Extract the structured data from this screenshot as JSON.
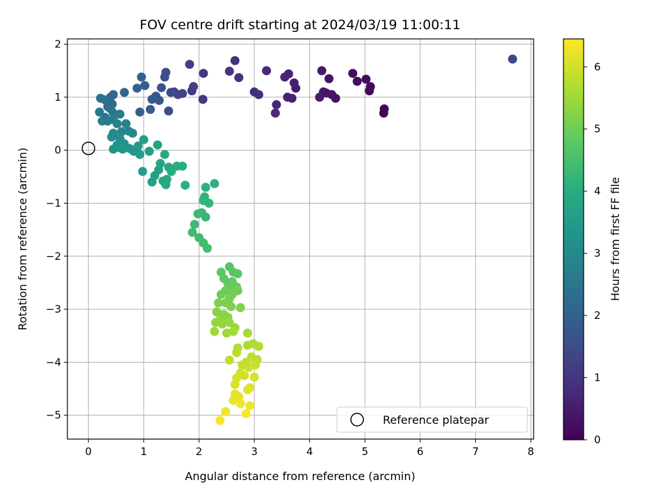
{
  "chart_data": {
    "type": "scatter",
    "title": "FOV centre drift starting at 2024/03/19 11:00:11",
    "xlabel": "Angular distance from reference (arcmin)",
    "ylabel": "Rotation from reference (arcmin)",
    "xlim": [
      -0.38,
      8.05
    ],
    "ylim": [
      -5.45,
      2.1
    ],
    "xticks": [
      0,
      1,
      2,
      3,
      4,
      5,
      6,
      7,
      8
    ],
    "yticks": [
      2,
      1,
      0,
      -1,
      -2,
      -3,
      -4,
      -5
    ],
    "grid": true,
    "colormap": "viridis",
    "colorbar": {
      "label": "Hours from first FF file",
      "range": [
        0,
        6.45
      ],
      "ticks": [
        0,
        1,
        2,
        3,
        4,
        5,
        6
      ]
    },
    "legend": {
      "placement": "lower-right",
      "entries": [
        {
          "label": "Reference platepar",
          "marker": "open-circle"
        }
      ],
      "reference_point": [
        0,
        0
      ]
    },
    "points": [
      [
        7.67,
        1.72,
        1.4
      ],
      [
        5.35,
        0.78,
        0.05
      ],
      [
        5.34,
        0.7,
        0.07
      ],
      [
        5.1,
        1.2,
        0.12
      ],
      [
        5.08,
        1.12,
        0.15
      ],
      [
        5.02,
        1.34,
        0.18
      ],
      [
        4.86,
        1.3,
        0.22
      ],
      [
        4.78,
        1.45,
        0.25
      ],
      [
        4.47,
        0.98,
        0.3
      ],
      [
        4.4,
        1.05,
        0.33
      ],
      [
        4.35,
        1.35,
        0.36
      ],
      [
        4.3,
        1.08,
        0.38
      ],
      [
        4.25,
        1.1,
        0.41
      ],
      [
        4.22,
        1.5,
        0.44
      ],
      [
        4.18,
        1.0,
        0.47
      ],
      [
        3.75,
        1.17,
        0.52
      ],
      [
        3.72,
        1.27,
        0.55
      ],
      [
        3.68,
        0.98,
        0.58
      ],
      [
        3.62,
        1.44,
        0.61
      ],
      [
        3.6,
        1.0,
        0.64
      ],
      [
        3.55,
        1.38,
        0.67
      ],
      [
        3.4,
        0.86,
        0.7
      ],
      [
        3.38,
        0.7,
        0.73
      ],
      [
        3.22,
        1.5,
        0.77
      ],
      [
        3.08,
        1.05,
        0.8
      ],
      [
        3.0,
        1.1,
        0.83
      ],
      [
        2.72,
        1.37,
        0.87
      ],
      [
        2.65,
        1.69,
        0.91
      ],
      [
        2.55,
        1.49,
        0.95
      ],
      [
        2.08,
        1.45,
        1.05
      ],
      [
        2.07,
        0.96,
        1.1
      ],
      [
        1.9,
        1.2,
        1.15
      ],
      [
        1.87,
        1.12,
        1.2
      ],
      [
        1.83,
        1.62,
        1.25
      ],
      [
        1.7,
        1.07,
        1.3
      ],
      [
        1.62,
        1.05,
        1.35
      ],
      [
        1.55,
        1.1,
        1.4
      ],
      [
        1.49,
        1.09,
        1.45
      ],
      [
        1.45,
        0.74,
        1.5
      ],
      [
        1.4,
        1.47,
        1.55
      ],
      [
        1.38,
        1.38,
        1.6
      ],
      [
        1.32,
        1.18,
        1.65
      ],
      [
        1.28,
        0.94,
        1.7
      ],
      [
        1.22,
        1.02,
        1.75
      ],
      [
        1.15,
        0.96,
        1.8
      ],
      [
        1.12,
        0.77,
        1.85
      ],
      [
        1.02,
        1.22,
        1.9
      ],
      [
        0.96,
        1.38,
        1.95
      ],
      [
        0.93,
        0.72,
        2.0
      ],
      [
        0.88,
        1.17,
        2.05
      ],
      [
        0.65,
        1.09,
        2.1
      ],
      [
        0.45,
        1.05,
        2.15
      ],
      [
        0.4,
        1.0,
        2.2
      ],
      [
        0.43,
        0.87,
        2.25
      ],
      [
        0.35,
        0.82,
        2.3
      ],
      [
        0.3,
        0.95,
        2.35
      ],
      [
        0.22,
        0.98,
        2.4
      ],
      [
        0.4,
        0.78,
        2.45
      ],
      [
        0.45,
        0.7,
        2.5
      ],
      [
        0.3,
        0.62,
        2.55
      ],
      [
        0.25,
        0.55,
        2.6
      ],
      [
        0.2,
        0.72,
        2.62
      ],
      [
        0.35,
        0.55,
        2.65
      ],
      [
        0.45,
        0.58,
        2.7
      ],
      [
        0.57,
        0.68,
        2.75
      ],
      [
        0.52,
        0.5,
        2.8
      ],
      [
        0.68,
        0.5,
        2.85
      ],
      [
        0.6,
        0.35,
        2.9
      ],
      [
        0.73,
        0.36,
        2.95
      ],
      [
        0.8,
        0.32,
        3.0
      ],
      [
        0.45,
        0.32,
        3.05
      ],
      [
        0.42,
        0.25,
        3.1
      ],
      [
        0.57,
        0.22,
        3.15
      ],
      [
        0.6,
        0.15,
        3.2
      ],
      [
        0.52,
        0.1,
        3.25
      ],
      [
        0.65,
        0.12,
        3.28
      ],
      [
        0.55,
        0.05,
        3.3
      ],
      [
        0.45,
        0.02,
        3.33
      ],
      [
        0.62,
        0.02,
        3.36
      ],
      [
        0.75,
        0.03,
        3.4
      ],
      [
        0.82,
        -0.02,
        3.43
      ],
      [
        0.9,
        0.08,
        3.46
      ],
      [
        0.93,
        -0.08,
        3.5
      ],
      [
        1.0,
        0.2,
        3.53
      ],
      [
        1.1,
        -0.02,
        3.56
      ],
      [
        0.98,
        -0.4,
        3.6
      ],
      [
        1.15,
        -0.6,
        3.63
      ],
      [
        1.2,
        -0.48,
        3.66
      ],
      [
        1.27,
        -0.37,
        3.7
      ],
      [
        1.25,
        0.1,
        3.73
      ],
      [
        1.3,
        -0.25,
        3.76
      ],
      [
        1.35,
        -0.58,
        3.8
      ],
      [
        1.4,
        -0.65,
        3.83
      ],
      [
        1.42,
        -0.55,
        3.86
      ],
      [
        1.38,
        -0.08,
        3.9
      ],
      [
        1.45,
        -0.32,
        3.93
      ],
      [
        1.5,
        -0.4,
        3.96
      ],
      [
        1.6,
        -0.3,
        4.0
      ],
      [
        1.7,
        -0.3,
        4.03
      ],
      [
        1.75,
        -0.66,
        4.06
      ],
      [
        2.28,
        -0.63,
        4.1
      ],
      [
        2.12,
        -0.7,
        4.13
      ],
      [
        2.1,
        -0.88,
        4.16
      ],
      [
        2.08,
        -0.95,
        4.19
      ],
      [
        2.18,
        -1.0,
        4.22
      ],
      [
        2.05,
        -1.18,
        4.25
      ],
      [
        2.12,
        -1.26,
        4.28
      ],
      [
        1.98,
        -1.2,
        4.31
      ],
      [
        1.92,
        -1.4,
        4.35
      ],
      [
        1.88,
        -1.55,
        4.38
      ],
      [
        2.0,
        -1.65,
        4.41
      ],
      [
        2.08,
        -1.75,
        4.44
      ],
      [
        2.15,
        -1.85,
        4.47
      ],
      [
        2.55,
        -2.2,
        4.7
      ],
      [
        2.62,
        -2.3,
        4.73
      ],
      [
        2.7,
        -2.33,
        4.76
      ],
      [
        2.4,
        -2.3,
        4.79
      ],
      [
        2.45,
        -2.42,
        4.82
      ],
      [
        2.52,
        -2.5,
        4.85
      ],
      [
        2.6,
        -2.48,
        4.88
      ],
      [
        2.68,
        -2.58,
        4.91
      ],
      [
        2.55,
        -2.6,
        4.94
      ],
      [
        2.48,
        -2.65,
        4.97
      ],
      [
        2.4,
        -2.72,
        5.0
      ],
      [
        2.6,
        -2.72,
        5.03
      ],
      [
        2.7,
        -2.65,
        5.06
      ],
      [
        2.55,
        -2.8,
        5.09
      ],
      [
        2.48,
        -2.88,
        5.12
      ],
      [
        2.35,
        -2.88,
        5.15
      ],
      [
        2.58,
        -2.95,
        5.18
      ],
      [
        2.75,
        -2.97,
        5.21
      ],
      [
        2.32,
        -3.05,
        5.24
      ],
      [
        2.45,
        -3.1,
        5.27
      ],
      [
        2.52,
        -3.15,
        5.3
      ],
      [
        2.38,
        -3.2,
        5.33
      ],
      [
        2.3,
        -3.25,
        5.36
      ],
      [
        2.42,
        -3.28,
        5.39
      ],
      [
        2.55,
        -3.25,
        5.42
      ],
      [
        2.65,
        -3.35,
        5.45
      ],
      [
        2.28,
        -3.42,
        5.48
      ],
      [
        2.5,
        -3.45,
        5.51
      ],
      [
        2.62,
        -3.42,
        5.54
      ],
      [
        2.88,
        -3.45,
        5.57
      ],
      [
        2.88,
        -3.68,
        5.62
      ],
      [
        2.98,
        -3.65,
        5.65
      ],
      [
        3.08,
        -3.7,
        5.68
      ],
      [
        2.7,
        -3.73,
        5.71
      ],
      [
        2.68,
        -3.82,
        5.74
      ],
      [
        2.95,
        -3.9,
        5.77
      ],
      [
        3.05,
        -3.95,
        5.8
      ],
      [
        2.55,
        -3.96,
        5.83
      ],
      [
        2.85,
        -4.0,
        5.86
      ],
      [
        2.78,
        -4.05,
        5.89
      ],
      [
        3.02,
        -4.05,
        5.92
      ],
      [
        2.9,
        -4.1,
        5.95
      ],
      [
        2.75,
        -4.2,
        5.98
      ],
      [
        2.82,
        -4.25,
        6.01
      ],
      [
        2.68,
        -4.3,
        6.04
      ],
      [
        3.0,
        -4.28,
        6.07
      ],
      [
        2.65,
        -4.42,
        6.1
      ],
      [
        2.92,
        -4.48,
        6.13
      ],
      [
        2.88,
        -4.52,
        6.16
      ],
      [
        2.65,
        -4.6,
        6.19
      ],
      [
        2.72,
        -4.65,
        6.22
      ],
      [
        2.62,
        -4.72,
        6.25
      ],
      [
        2.75,
        -4.78,
        6.28
      ],
      [
        2.92,
        -4.82,
        6.31
      ],
      [
        2.48,
        -4.93,
        6.34
      ],
      [
        2.85,
        -4.97,
        6.37
      ],
      [
        2.38,
        -5.1,
        6.4
      ]
    ]
  }
}
